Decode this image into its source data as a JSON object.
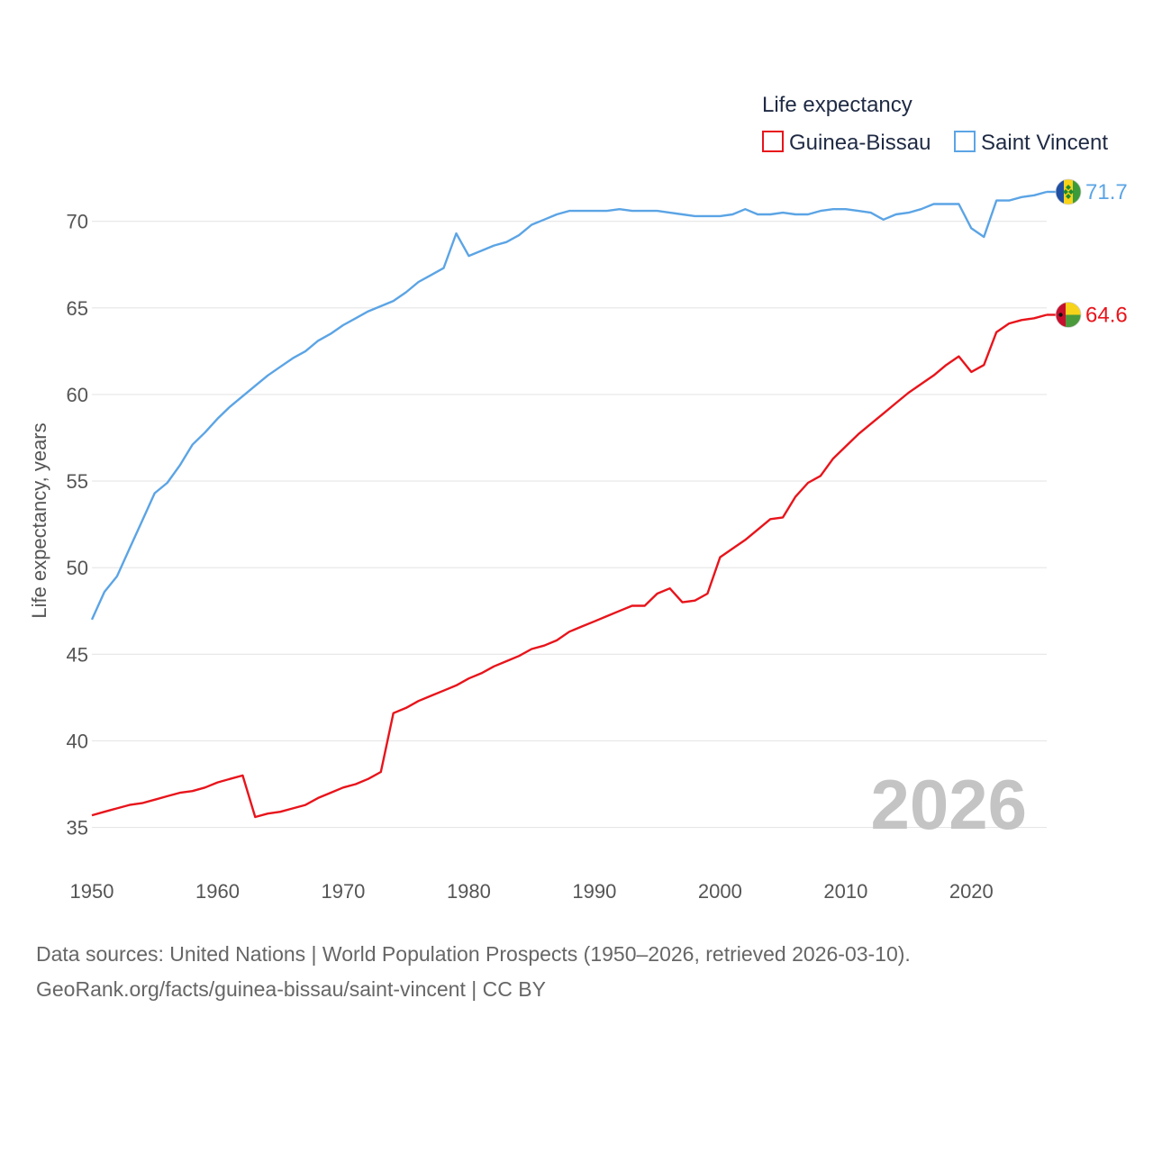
{
  "chart_data": {
    "type": "line",
    "title": "",
    "xlabel": "",
    "ylabel": "Life expectancy, years",
    "xlim": [
      1950,
      2026
    ],
    "ylim": [
      33,
      73
    ],
    "x_ticks": [
      1950,
      1960,
      1970,
      1980,
      1990,
      2000,
      2010,
      2020
    ],
    "y_ticks": [
      35,
      40,
      45,
      50,
      55,
      60,
      65,
      70
    ],
    "grid": "horizontal",
    "legend_title": "Life expectancy",
    "legend_position": "top-right",
    "current_year": "2026",
    "x": [
      1950,
      1951,
      1952,
      1953,
      1954,
      1955,
      1956,
      1957,
      1958,
      1959,
      1960,
      1961,
      1962,
      1963,
      1964,
      1965,
      1966,
      1967,
      1968,
      1969,
      1970,
      1971,
      1972,
      1973,
      1974,
      1975,
      1976,
      1977,
      1978,
      1979,
      1980,
      1981,
      1982,
      1983,
      1984,
      1985,
      1986,
      1987,
      1988,
      1989,
      1990,
      1991,
      1992,
      1993,
      1994,
      1995,
      1996,
      1997,
      1998,
      1999,
      2000,
      2001,
      2002,
      2003,
      2004,
      2005,
      2006,
      2007,
      2008,
      2009,
      2010,
      2011,
      2012,
      2013,
      2014,
      2015,
      2016,
      2017,
      2018,
      2019,
      2020,
      2021,
      2022,
      2023,
      2024,
      2025,
      2026
    ],
    "series": [
      {
        "name": "Guinea-Bissau",
        "color": "#e8141b",
        "end_label": "64.6",
        "flag": "guinea-bissau-flag",
        "values": [
          35.7,
          35.9,
          36.1,
          36.3,
          36.4,
          36.6,
          36.8,
          37.0,
          37.1,
          37.3,
          37.6,
          37.8,
          38.0,
          35.6,
          35.8,
          35.9,
          36.1,
          36.3,
          36.7,
          37.0,
          37.3,
          37.5,
          37.8,
          38.2,
          41.6,
          41.9,
          42.3,
          42.6,
          42.9,
          43.2,
          43.6,
          43.9,
          44.3,
          44.6,
          44.9,
          45.3,
          45.5,
          45.8,
          46.3,
          46.6,
          46.9,
          47.2,
          47.5,
          47.8,
          47.8,
          48.5,
          48.8,
          48.0,
          48.1,
          48.5,
          50.6,
          51.1,
          51.6,
          52.2,
          52.8,
          52.9,
          54.1,
          54.9,
          55.3,
          56.3,
          57.0,
          57.7,
          58.3,
          58.9,
          59.5,
          60.1,
          60.6,
          61.1,
          61.7,
          62.2,
          61.3,
          61.7,
          63.6,
          64.1,
          64.3,
          64.4,
          64.6
        ]
      },
      {
        "name": "Saint Vincent",
        "color": "#5ba4e5",
        "end_label": "71.7",
        "flag": "saint-vincent-flag",
        "values": [
          47.0,
          48.6,
          49.5,
          51.1,
          52.7,
          54.3,
          54.9,
          55.9,
          57.1,
          57.8,
          58.6,
          59.3,
          59.9,
          60.5,
          61.1,
          61.6,
          62.1,
          62.5,
          63.1,
          63.5,
          64.0,
          64.4,
          64.8,
          65.1,
          65.4,
          65.9,
          66.5,
          66.9,
          67.3,
          69.3,
          68.0,
          68.3,
          68.6,
          68.8,
          69.2,
          69.8,
          70.1,
          70.4,
          70.6,
          70.6,
          70.6,
          70.6,
          70.7,
          70.6,
          70.6,
          70.6,
          70.5,
          70.4,
          70.3,
          70.3,
          70.3,
          70.4,
          70.7,
          70.4,
          70.4,
          70.5,
          70.4,
          70.4,
          70.6,
          70.7,
          70.7,
          70.6,
          70.5,
          70.1,
          70.4,
          70.5,
          70.7,
          71.0,
          71.0,
          71.0,
          69.6,
          69.1,
          71.2,
          71.2,
          71.4,
          71.5,
          71.7
        ]
      }
    ]
  },
  "footer": {
    "line1": "Data sources: United Nations | World Population Prospects (1950–2026, retrieved 2026-03-10).",
    "line2": "GeoRank.org/facts/guinea-bissau/saint-vincent | CC BY"
  }
}
